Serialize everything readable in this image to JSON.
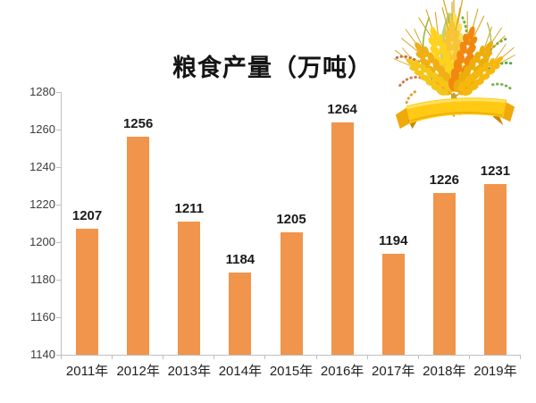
{
  "chart": {
    "title": "粮食产量（万吨）"
  },
  "chart_data": {
    "type": "bar",
    "title": "粮食产量（万吨）",
    "categories": [
      "2011年",
      "2012年",
      "2013年",
      "2014年",
      "2015年",
      "2016年",
      "2017年",
      "2018年",
      "2019年"
    ],
    "values": [
      1207,
      1256,
      1211,
      1184,
      1205,
      1264,
      1194,
      1226,
      1231
    ],
    "xlabel": "",
    "ylabel": "",
    "ylim": [
      1140,
      1280
    ],
    "yticks": [
      1140,
      1160,
      1180,
      1200,
      1220,
      1240,
      1260,
      1280
    ],
    "grid": false,
    "legend": false,
    "data_labels": true,
    "bar_color": "#F0954B",
    "value_label_color": "#1a1a1a",
    "tick_label_color": "#3d3d3d",
    "axis_line_color": "#BFBFBF",
    "background_color": "#ffffff"
  },
  "icons": {
    "wheat_illustration": "wheat-bouquet-with-yellow-ribbon"
  }
}
